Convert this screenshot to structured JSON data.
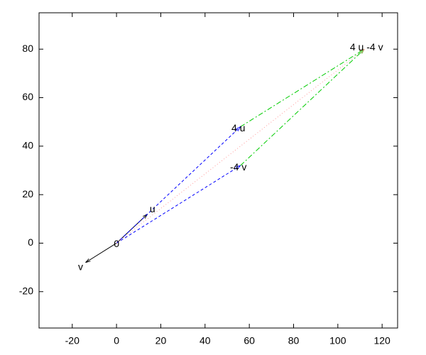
{
  "chart_data": {
    "type": "vector",
    "xlim": [
      -35,
      127
    ],
    "ylim": [
      -35,
      95
    ],
    "xticks": [
      -20,
      0,
      20,
      40,
      60,
      80,
      100,
      120
    ],
    "yticks": [
      -20,
      0,
      20,
      40,
      60,
      80
    ],
    "points": [
      {
        "label": "0",
        "x": 0,
        "y": 0
      },
      {
        "label": "u",
        "x": 14,
        "y": 12
      },
      {
        "label": "v",
        "x": -14,
        "y": -8
      },
      {
        "label": "4 u",
        "x": 56,
        "y": 48
      },
      {
        "label": "-4 v",
        "x": 56,
        "y": 32
      },
      {
        "label": "4 u -4 v",
        "x": 112,
        "y": 80
      }
    ],
    "series": [
      {
        "color": "#000000",
        "style": "solid",
        "x": [
          0,
          14
        ],
        "y": [
          0,
          12
        ]
      },
      {
        "color": "#000000",
        "style": "solid",
        "x": [
          0,
          -14
        ],
        "y": [
          0,
          -8
        ]
      },
      {
        "color": "#0000ff",
        "style": "dashed",
        "x": [
          0,
          56
        ],
        "y": [
          0,
          48
        ]
      },
      {
        "color": "#0000ff",
        "style": "dashed",
        "x": [
          0,
          56
        ],
        "y": [
          0,
          32
        ]
      },
      {
        "color": "#00cc00",
        "style": "dashdot",
        "x": [
          56,
          112
        ],
        "y": [
          48,
          80
        ]
      },
      {
        "color": "#00cc00",
        "style": "dashdot",
        "x": [
          56,
          112
        ],
        "y": [
          32,
          80
        ]
      },
      {
        "color": "#ff9999",
        "style": "dotted",
        "x": [
          0,
          112
        ],
        "y": [
          0,
          80
        ]
      }
    ]
  }
}
